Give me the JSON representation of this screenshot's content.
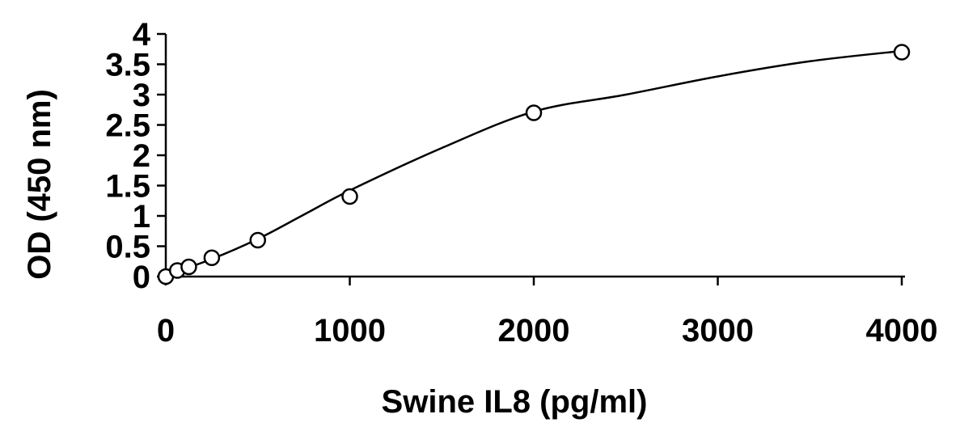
{
  "chart_data": {
    "type": "scatter",
    "xlabel": "Swine IL8 (pg/ml)",
    "ylabel": "OD (450 nm)",
    "xlim": [
      0,
      4000
    ],
    "ylim": [
      0,
      4
    ],
    "x_ticks": [
      0,
      1000,
      2000,
      3000,
      4000
    ],
    "y_ticks": [
      0,
      0.5,
      1,
      1.5,
      2,
      2.5,
      3,
      3.5,
      4
    ],
    "x_tick_labels": [
      "0",
      "1000",
      "2000",
      "3000",
      "4000"
    ],
    "y_tick_labels": [
      "0",
      "0.5",
      "1",
      "1.5",
      "2",
      "2.5",
      "3",
      "3.5",
      "4"
    ],
    "grid": false,
    "legend": "none",
    "series": [
      {
        "marker": "open-circle",
        "x": [
          0,
          62.5,
          125,
          250,
          500,
          1000,
          2000,
          4000
        ],
        "y": [
          0.0,
          0.1,
          0.16,
          0.31,
          0.6,
          1.32,
          2.7,
          3.7
        ]
      }
    ],
    "fit_curve": {
      "x": [
        0,
        250,
        500,
        750,
        1000,
        1500,
        2000,
        2500,
        3000,
        3500,
        4000
      ],
      "y": [
        0.02,
        0.29,
        0.62,
        1.02,
        1.42,
        2.12,
        2.72,
        3.0,
        3.3,
        3.55,
        3.72
      ]
    },
    "colors": {
      "axis": "#000000",
      "marker_stroke": "#000000",
      "marker_fill": "#ffffff",
      "curve": "#000000"
    }
  }
}
